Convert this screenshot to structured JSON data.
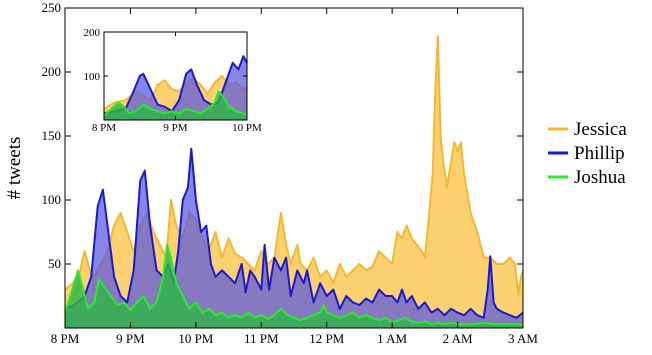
{
  "chart_data": {
    "type": "area",
    "title": "",
    "xlabel": "",
    "ylabel": "# tweets",
    "x_ticks": [
      "8 PM",
      "9 PM",
      "10 PM",
      "11 PM",
      "12 PM",
      "1 AM",
      "2 AM",
      "3 AM"
    ],
    "y_ticks": [
      "50",
      "100",
      "150",
      "200",
      "250"
    ],
    "y_tick_values": [
      50,
      100,
      150,
      200,
      250
    ],
    "xlim_hours": [
      0,
      7
    ],
    "ylim": [
      0,
      250
    ],
    "legend_position": "right",
    "grid": false,
    "series": [
      {
        "name": "Jessica",
        "color": "#f5b731",
        "fill": "rgba(252, 196, 70, 0.78)",
        "points": [
          [
            0,
            30
          ],
          [
            0.12,
            35
          ],
          [
            0.22,
            42
          ],
          [
            0.3,
            60
          ],
          [
            0.38,
            45
          ],
          [
            0.45,
            40
          ],
          [
            0.55,
            50
          ],
          [
            0.65,
            60
          ],
          [
            0.75,
            80
          ],
          [
            0.85,
            90
          ],
          [
            0.95,
            75
          ],
          [
            1.05,
            60
          ],
          [
            1.15,
            80
          ],
          [
            1.25,
            90
          ],
          [
            1.35,
            75
          ],
          [
            1.45,
            65
          ],
          [
            1.55,
            55
          ],
          [
            1.62,
            100
          ],
          [
            1.7,
            80
          ],
          [
            1.8,
            70
          ],
          [
            1.9,
            90
          ],
          [
            2.0,
            85
          ],
          [
            2.1,
            70
          ],
          [
            2.2,
            60
          ],
          [
            2.3,
            75
          ],
          [
            2.4,
            55
          ],
          [
            2.5,
            70
          ],
          [
            2.6,
            58
          ],
          [
            2.7,
            55
          ],
          [
            2.8,
            50
          ],
          [
            2.9,
            45
          ],
          [
            3.0,
            60
          ],
          [
            3.1,
            50
          ],
          [
            3.2,
            55
          ],
          [
            3.3,
            90
          ],
          [
            3.38,
            65
          ],
          [
            3.45,
            50
          ],
          [
            3.55,
            65
          ],
          [
            3.6,
            50
          ],
          [
            3.7,
            45
          ],
          [
            3.8,
            55
          ],
          [
            3.9,
            40
          ],
          [
            4.0,
            45
          ],
          [
            4.1,
            35
          ],
          [
            4.2,
            50
          ],
          [
            4.3,
            40
          ],
          [
            4.4,
            45
          ],
          [
            4.5,
            50
          ],
          [
            4.6,
            45
          ],
          [
            4.7,
            48
          ],
          [
            4.8,
            60
          ],
          [
            4.9,
            55
          ],
          [
            5.0,
            50
          ],
          [
            5.08,
            75
          ],
          [
            5.15,
            70
          ],
          [
            5.22,
            80
          ],
          [
            5.3,
            70
          ],
          [
            5.38,
            65
          ],
          [
            5.45,
            60
          ],
          [
            5.5,
            55
          ],
          [
            5.55,
            80
          ],
          [
            5.62,
            120
          ],
          [
            5.66,
            185
          ],
          [
            5.7,
            228
          ],
          [
            5.74,
            150
          ],
          [
            5.78,
            130
          ],
          [
            5.84,
            110
          ],
          [
            5.9,
            130
          ],
          [
            5.95,
            145
          ],
          [
            6.0,
            138
          ],
          [
            6.05,
            145
          ],
          [
            6.1,
            120
          ],
          [
            6.2,
            90
          ],
          [
            6.3,
            75
          ],
          [
            6.4,
            55
          ],
          [
            6.5,
            55
          ],
          [
            6.6,
            50
          ],
          [
            6.7,
            50
          ],
          [
            6.8,
            55
          ],
          [
            6.88,
            50
          ],
          [
            6.93,
            25
          ],
          [
            6.97,
            40
          ],
          [
            7.0,
            45
          ]
        ]
      },
      {
        "name": "Phillip",
        "color": "#1a1acc",
        "fill": "rgba(88, 88, 224, 0.72)",
        "points": [
          [
            0,
            15
          ],
          [
            0.15,
            18
          ],
          [
            0.3,
            25
          ],
          [
            0.4,
            40
          ],
          [
            0.5,
            95
          ],
          [
            0.58,
            108
          ],
          [
            0.65,
            80
          ],
          [
            0.75,
            40
          ],
          [
            0.85,
            25
          ],
          [
            0.95,
            20
          ],
          [
            1.05,
            45
          ],
          [
            1.15,
            115
          ],
          [
            1.22,
            123
          ],
          [
            1.3,
            80
          ],
          [
            1.4,
            45
          ],
          [
            1.5,
            40
          ],
          [
            1.58,
            50
          ],
          [
            1.66,
            35
          ],
          [
            1.73,
            60
          ],
          [
            1.8,
            100
          ],
          [
            1.88,
            110
          ],
          [
            1.93,
            140
          ],
          [
            2.0,
            100
          ],
          [
            2.08,
            75
          ],
          [
            2.16,
            80
          ],
          [
            2.23,
            50
          ],
          [
            2.3,
            40
          ],
          [
            2.4,
            45
          ],
          [
            2.5,
            40
          ],
          [
            2.6,
            35
          ],
          [
            2.7,
            50
          ],
          [
            2.76,
            28
          ],
          [
            2.83,
            45
          ],
          [
            2.9,
            40
          ],
          [
            3.0,
            30
          ],
          [
            3.05,
            65
          ],
          [
            3.12,
            30
          ],
          [
            3.2,
            55
          ],
          [
            3.3,
            45
          ],
          [
            3.38,
            55
          ],
          [
            3.45,
            25
          ],
          [
            3.55,
            45
          ],
          [
            3.65,
            35
          ],
          [
            3.7,
            45
          ],
          [
            3.8,
            20
          ],
          [
            3.9,
            35
          ],
          [
            4.0,
            25
          ],
          [
            4.1,
            30
          ],
          [
            4.2,
            15
          ],
          [
            4.3,
            25
          ],
          [
            4.4,
            20
          ],
          [
            4.5,
            18
          ],
          [
            4.6,
            23
          ],
          [
            4.7,
            20
          ],
          [
            4.8,
            30
          ],
          [
            4.9,
            25
          ],
          [
            5.0,
            25
          ],
          [
            5.08,
            20
          ],
          [
            5.15,
            30
          ],
          [
            5.22,
            20
          ],
          [
            5.3,
            25
          ],
          [
            5.4,
            15
          ],
          [
            5.5,
            20
          ],
          [
            5.6,
            12
          ],
          [
            5.7,
            15
          ],
          [
            5.8,
            10
          ],
          [
            5.9,
            15
          ],
          [
            6.0,
            12
          ],
          [
            6.1,
            10
          ],
          [
            6.2,
            15
          ],
          [
            6.3,
            10
          ],
          [
            6.4,
            8
          ],
          [
            6.46,
            30
          ],
          [
            6.5,
            56
          ],
          [
            6.55,
            20
          ],
          [
            6.6,
            15
          ],
          [
            6.7,
            12
          ],
          [
            6.8,
            10
          ],
          [
            6.9,
            8
          ],
          [
            7.0,
            12
          ]
        ]
      },
      {
        "name": "Joshua",
        "color": "#2ee82e",
        "fill": "rgba(46, 180, 72, 0.82)",
        "points": [
          [
            0,
            12
          ],
          [
            0.1,
            28
          ],
          [
            0.2,
            45
          ],
          [
            0.28,
            30
          ],
          [
            0.35,
            15
          ],
          [
            0.45,
            20
          ],
          [
            0.52,
            38
          ],
          [
            0.6,
            32
          ],
          [
            0.7,
            25
          ],
          [
            0.8,
            18
          ],
          [
            0.9,
            20
          ],
          [
            1.0,
            14
          ],
          [
            1.1,
            20
          ],
          [
            1.2,
            25
          ],
          [
            1.3,
            15
          ],
          [
            1.4,
            20
          ],
          [
            1.5,
            40
          ],
          [
            1.56,
            65
          ],
          [
            1.62,
            55
          ],
          [
            1.7,
            35
          ],
          [
            1.8,
            25
          ],
          [
            1.9,
            15
          ],
          [
            2.0,
            20
          ],
          [
            2.1,
            12
          ],
          [
            2.2,
            15
          ],
          [
            2.3,
            10
          ],
          [
            2.4,
            12
          ],
          [
            2.5,
            8
          ],
          [
            2.6,
            10
          ],
          [
            2.7,
            8
          ],
          [
            2.8,
            12
          ],
          [
            2.9,
            8
          ],
          [
            3.0,
            10
          ],
          [
            3.1,
            7
          ],
          [
            3.2,
            10
          ],
          [
            3.3,
            15
          ],
          [
            3.4,
            10
          ],
          [
            3.5,
            8
          ],
          [
            3.6,
            6
          ],
          [
            3.7,
            8
          ],
          [
            3.8,
            10
          ],
          [
            3.9,
            12
          ],
          [
            3.95,
            18
          ],
          [
            4.0,
            12
          ],
          [
            4.1,
            10
          ],
          [
            4.2,
            8
          ],
          [
            4.3,
            10
          ],
          [
            4.4,
            12
          ],
          [
            4.5,
            8
          ],
          [
            4.6,
            10
          ],
          [
            4.7,
            8
          ],
          [
            4.8,
            6
          ],
          [
            4.9,
            8
          ],
          [
            5.0,
            4
          ],
          [
            5.1,
            6
          ],
          [
            5.2,
            8
          ],
          [
            5.3,
            5
          ],
          [
            5.4,
            4
          ],
          [
            5.5,
            5
          ],
          [
            5.6,
            3
          ],
          [
            5.7,
            4
          ],
          [
            5.8,
            3
          ],
          [
            5.9,
            4
          ],
          [
            6.0,
            3
          ],
          [
            6.2,
            3
          ],
          [
            6.4,
            4
          ],
          [
            6.6,
            3
          ],
          [
            6.8,
            3
          ],
          [
            7.0,
            3
          ]
        ]
      }
    ],
    "inset": {
      "x_ticks": [
        "8 PM",
        "9 PM",
        "10 PM"
      ],
      "y_ticks": [
        "100",
        "200"
      ],
      "y_tick_values": [
        100,
        200
      ],
      "xlim_hours": [
        0,
        2
      ],
      "ylim": [
        0,
        200
      ],
      "series": [
        {
          "name": "Jessica",
          "color": "#f5b731",
          "fill": "rgba(252, 196, 70, 0.78)",
          "points": [
            [
              0,
              25
            ],
            [
              0.15,
              40
            ],
            [
              0.3,
              45
            ],
            [
              0.45,
              65
            ],
            [
              0.55,
              55
            ],
            [
              0.65,
              45
            ],
            [
              0.75,
              80
            ],
            [
              0.85,
              90
            ],
            [
              0.95,
              70
            ],
            [
              1.05,
              65
            ],
            [
              1.15,
              85
            ],
            [
              1.25,
              95
            ],
            [
              1.35,
              80
            ],
            [
              1.45,
              60
            ],
            [
              1.55,
              85
            ],
            [
              1.65,
              100
            ],
            [
              1.75,
              80
            ],
            [
              1.85,
              85
            ],
            [
              1.95,
              70
            ],
            [
              2.0,
              75
            ]
          ]
        },
        {
          "name": "Phillip",
          "color": "#1a1acc",
          "fill": "rgba(88, 88, 224, 0.72)",
          "points": [
            [
              0,
              15
            ],
            [
              0.15,
              20
            ],
            [
              0.3,
              25
            ],
            [
              0.4,
              60
            ],
            [
              0.5,
              100
            ],
            [
              0.55,
              105
            ],
            [
              0.65,
              70
            ],
            [
              0.75,
              35
            ],
            [
              0.85,
              30
            ],
            [
              0.95,
              20
            ],
            [
              1.05,
              45
            ],
            [
              1.15,
              105
            ],
            [
              1.22,
              115
            ],
            [
              1.3,
              80
            ],
            [
              1.4,
              45
            ],
            [
              1.5,
              35
            ],
            [
              1.6,
              40
            ],
            [
              1.7,
              85
            ],
            [
              1.8,
              130
            ],
            [
              1.88,
              115
            ],
            [
              1.95,
              145
            ],
            [
              2.0,
              130
            ]
          ]
        },
        {
          "name": "Joshua",
          "color": "#2ee82e",
          "fill": "rgba(46, 180, 72, 0.82)",
          "points": [
            [
              0,
              10
            ],
            [
              0.1,
              25
            ],
            [
              0.2,
              40
            ],
            [
              0.28,
              30
            ],
            [
              0.35,
              15
            ],
            [
              0.45,
              20
            ],
            [
              0.55,
              35
            ],
            [
              0.65,
              25
            ],
            [
              0.75,
              20
            ],
            [
              0.85,
              15
            ],
            [
              0.95,
              20
            ],
            [
              1.05,
              14
            ],
            [
              1.15,
              25
            ],
            [
              1.25,
              20
            ],
            [
              1.35,
              15
            ],
            [
              1.45,
              25
            ],
            [
              1.55,
              40
            ],
            [
              1.6,
              65
            ],
            [
              1.68,
              50
            ],
            [
              1.75,
              30
            ],
            [
              1.85,
              20
            ],
            [
              1.95,
              15
            ],
            [
              2.0,
              12
            ]
          ]
        }
      ]
    }
  }
}
